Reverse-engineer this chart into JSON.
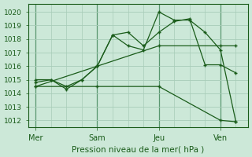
{
  "background_color": "#cce8d8",
  "grid_color": "#a8ccb8",
  "line_color": "#1a5c1a",
  "xlabel": "Pression niveau de la mer( hPa )",
  "ylim": [
    1011.5,
    1020.6
  ],
  "yticks": [
    1012,
    1013,
    1014,
    1015,
    1016,
    1017,
    1018,
    1019,
    1020
  ],
  "xtick_labels": [
    "Mer",
    "Sam",
    "Jeu",
    "Ven"
  ],
  "xtick_positions": [
    0,
    4,
    8,
    12
  ],
  "vline_x": [
    0,
    4,
    8,
    12
  ],
  "xlim": [
    -0.5,
    13.8
  ],
  "series": [
    {
      "x": [
        0,
        1,
        2,
        3,
        4,
        5,
        6,
        7,
        8,
        9,
        10,
        11,
        12,
        13
      ],
      "y": [
        1015.0,
        1015.0,
        1014.5,
        1015.0,
        1016.0,
        1018.3,
        1018.5,
        1017.5,
        1018.5,
        1019.3,
        1019.5,
        1016.1,
        1016.1,
        1015.5
      ]
    },
    {
      "x": [
        0,
        1,
        2,
        3,
        4,
        5,
        6,
        7,
        8,
        9,
        10,
        11,
        12,
        13
      ],
      "y": [
        1014.8,
        1015.0,
        1014.3,
        1015.0,
        1016.0,
        1018.3,
        1017.5,
        1017.2,
        1020.0,
        1019.4,
        1019.4,
        1018.5,
        1017.2,
        1011.9
      ]
    },
    {
      "x": [
        0,
        4,
        8,
        12,
        13
      ],
      "y": [
        1014.5,
        1016.0,
        1017.5,
        1017.5,
        1017.5
      ]
    },
    {
      "x": [
        0,
        4,
        8,
        12,
        13
      ],
      "y": [
        1014.5,
        1014.5,
        1014.5,
        1012.0,
        1011.9
      ]
    }
  ]
}
